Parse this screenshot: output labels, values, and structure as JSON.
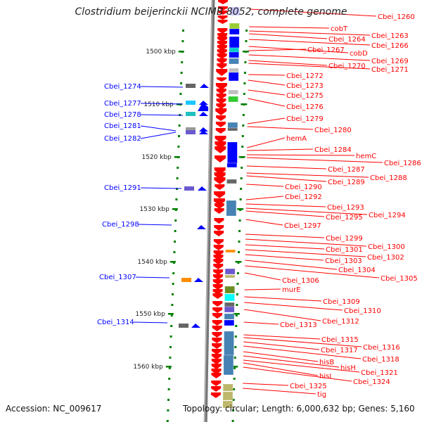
{
  "title": "Clostridium beijerinckii NCIMB 8052, complete genome",
  "footer": {
    "accession": "Accession: NC_009617",
    "topology": "Topology: circular; Length: 6,000,632 bp; Genes: 5,160"
  },
  "scale_labels": [
    "1500 kbp",
    "1510 kbp",
    "1520 kbp",
    "1530 kbp",
    "1540 kbp",
    "1550 kbp",
    "1560 kbp"
  ],
  "right_genes": [
    "Cbei_1260",
    "cobT",
    "Cbei_1263",
    "Cbei_1264",
    "Cbei_1266",
    "Cbei_1267",
    "cobD",
    "Cbei_1269",
    "Cbei_1270",
    "Cbei_1271",
    "Cbei_1272",
    "Cbei_1273",
    "Cbei_1275",
    "Cbei_1276",
    "Cbei_1279",
    "Cbei_1280",
    "hemA",
    "Cbei_1284",
    "hemC",
    "Cbei_1286",
    "Cbei_1287",
    "Cbei_1288",
    "Cbei_1289",
    "Cbei_1290",
    "Cbei_1292",
    "Cbei_1293",
    "Cbei_1294",
    "Cbei_1295",
    "Cbei_1297",
    "Cbei_1299",
    "Cbei_1300",
    "Cbei_1301",
    "Cbei_1302",
    "Cbei_1303",
    "Cbei_1304",
    "Cbei_1305",
    "Cbei_1306",
    "murE",
    "Cbei_1309",
    "Cbei_1310",
    "Cbei_1312",
    "Cbei_1313",
    "Cbei_1315",
    "Cbei_1316",
    "Cbei_1317",
    "Cbei_1318",
    "hisB",
    "hisH",
    "Cbei_1321",
    "hisI",
    "Cbei_1324",
    "Cbei_1325",
    "tig"
  ],
  "left_genes": [
    "Cbei_1274",
    "Cbei_1277",
    "Cbei_1278",
    "Cbei_1281",
    "Cbei_1282",
    "Cbei_1291",
    "Cbei_1298",
    "Cbei_1307",
    "Cbei_1314"
  ],
  "colors": {
    "forward": "#ff0000",
    "reverse": "#0000ff",
    "backbone": "#888888",
    "tick": "#008000"
  }
}
